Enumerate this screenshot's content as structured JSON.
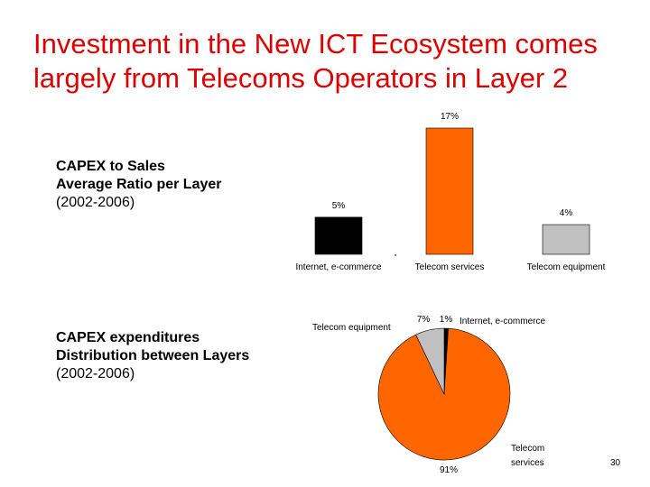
{
  "slide": {
    "title_line1": "Investment in the New ICT Ecosystem comes",
    "title_line2": "largely from Telecoms Operators in Layer 2",
    "caption1": {
      "line1": "CAPEX to Sales",
      "line2": "Average Ratio per Layer",
      "line3": "(2002-2006)"
    },
    "caption2": {
      "line1": "CAPEX expenditures",
      "line2": "Distribution between Layers",
      "line3": "(2002-2006)"
    },
    "page_number": "30"
  },
  "chart_data": [
    {
      "type": "bar",
      "categories": [
        "Internet, e-commerce",
        "Telecom services",
        "Telecom equipment"
      ],
      "values": [
        5,
        17,
        4
      ],
      "value_labels": [
        "5%",
        "17%",
        "4%"
      ],
      "colors": [
        "#000000",
        "#ff6600",
        "#c0c0c0"
      ],
      "ylim": [
        0,
        17
      ],
      "grid": false
    },
    {
      "type": "pie",
      "labels": [
        "Internet, e-commerce",
        "Telecom services",
        "Telecom equipment"
      ],
      "label_lines": [
        [
          "Internet, e-commerce"
        ],
        [
          "Telecom",
          "services"
        ],
        [
          "Telecom equipment"
        ]
      ],
      "values": [
        1,
        91,
        7
      ],
      "value_labels": [
        "1%",
        "91%",
        "7%"
      ],
      "colors": [
        "#000000",
        "#ff6600",
        "#c0c0c0"
      ]
    }
  ]
}
